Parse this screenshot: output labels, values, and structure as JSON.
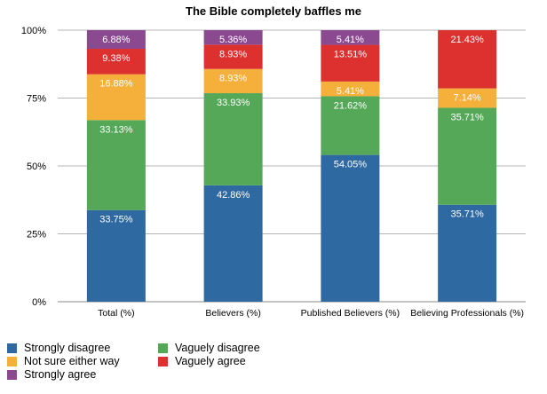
{
  "chart_data": {
    "type": "bar",
    "stacked": true,
    "title": "The Bible completely baffles me",
    "categories": [
      "Total (%)",
      "Believers (%)",
      "Published Believers (%)",
      "Believing Professionals (%)"
    ],
    "ylim": [
      0,
      100
    ],
    "yticks": [
      "0%",
      "25%",
      "50%",
      "75%",
      "100%"
    ],
    "grid": true,
    "legend_position": "bottom-left",
    "series": [
      {
        "name": "Strongly disagree",
        "color": "#2e69a2",
        "values": [
          33.75,
          42.86,
          54.05,
          35.71
        ],
        "labels": [
          "33.75%",
          "42.86%",
          "54.05%",
          "35.71%"
        ]
      },
      {
        "name": "Vaguely disagree",
        "color": "#54a857",
        "values": [
          33.13,
          33.93,
          21.62,
          35.71
        ],
        "labels": [
          "33.13%",
          "33.93%",
          "21.62%",
          "35.71%"
        ]
      },
      {
        "name": "Not sure either way",
        "color": "#f5af3b",
        "values": [
          16.88,
          8.93,
          5.41,
          7.14
        ],
        "labels": [
          "16.88%",
          "8.93%",
          "5.41%",
          "7.14%"
        ]
      },
      {
        "name": "Vaguely agree",
        "color": "#dc312e",
        "values": [
          9.38,
          8.93,
          13.51,
          21.43
        ],
        "labels": [
          "9.38%",
          "8.93%",
          "13.51%",
          "21.43%"
        ]
      },
      {
        "name": "Strongly agree",
        "color": "#8b4990",
        "values": [
          6.88,
          5.36,
          5.41,
          0
        ],
        "labels": [
          "6.88%",
          "5.36%",
          "5.41%",
          ""
        ]
      }
    ]
  }
}
